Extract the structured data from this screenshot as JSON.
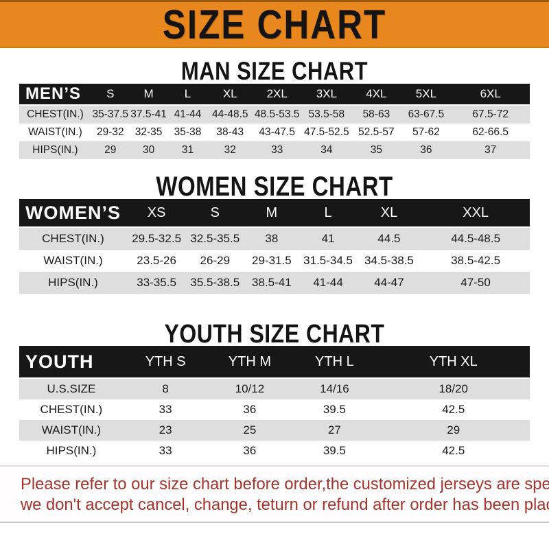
{
  "banner": {
    "title": "SIZE CHART"
  },
  "sections": [
    {
      "heading": "MAN SIZE CHART",
      "table": {
        "header": [
          "MEN’S",
          "S",
          "M",
          "L",
          "XL",
          "2XL",
          "3XL",
          "4XL",
          "5XL",
          "6XL"
        ],
        "rows": [
          [
            "CHEST(IN.)",
            "35-37.5",
            "37.5-41",
            "41-44",
            "44-48.5",
            "48.5-53.5",
            "53.5-58",
            "58-63",
            "63-67.5",
            "67.5-72"
          ],
          [
            "WAIST(IN.)",
            "29-32",
            "32-35",
            "35-38",
            "38-43",
            "43-47.5",
            "47.5-52.5",
            "52.5-57",
            "57-62",
            "62-66.5"
          ],
          [
            "HIPS(IN.)",
            "29",
            "30",
            "31",
            "32",
            "33",
            "34",
            "35",
            "36",
            "37"
          ]
        ]
      }
    },
    {
      "heading": "WOMEN SIZE CHART",
      "table": {
        "header": [
          "WOMEN’S",
          "XS",
          "S",
          "M",
          "L",
          "XL",
          "XXL"
        ],
        "rows": [
          [
            "CHEST(IN.)",
            "29.5-32.5",
            "32.5-35.5",
            "38",
            "41",
            "44.5",
            "44.5-48.5"
          ],
          [
            "WAIST(IN.)",
            "23.5-26",
            "26-29",
            "29-31.5",
            "31.5-34.5",
            "34.5-38.5",
            "38.5-42.5"
          ],
          [
            "HIPS(IN.)",
            "33-35.5",
            "35.5-38.5",
            "38.5-41",
            "41-44",
            "44-47",
            "47-50"
          ]
        ]
      }
    },
    {
      "heading": "YOUTH SIZE CHART",
      "table": {
        "header": [
          "YOUTH",
          "YTH S",
          "YTH M",
          "YTH L",
          "YTH XL"
        ],
        "rows": [
          [
            "U.S.SIZE",
            "8",
            "10/12",
            "14/16",
            "18/20"
          ],
          [
            "CHEST(IN.)",
            "33",
            "36",
            "39.5",
            "42.5"
          ],
          [
            "WAIST(IN.)",
            "23",
            "25",
            "27",
            "29"
          ],
          [
            "HIPS(IN.)",
            "33",
            "36",
            "39.5",
            "42.5"
          ]
        ]
      }
    }
  ],
  "footer": {
    "line1": "Please refer to our size chart before order,the customized jerseys are special products,",
    "line2": "we don't accept cancel, change, teturn or refund after order has been placed!"
  },
  "colors": {
    "banner_orange": "#E8871E",
    "header_black": "#171717",
    "row_gray": "#DEDEDE",
    "footer_red": "#A5342C"
  }
}
